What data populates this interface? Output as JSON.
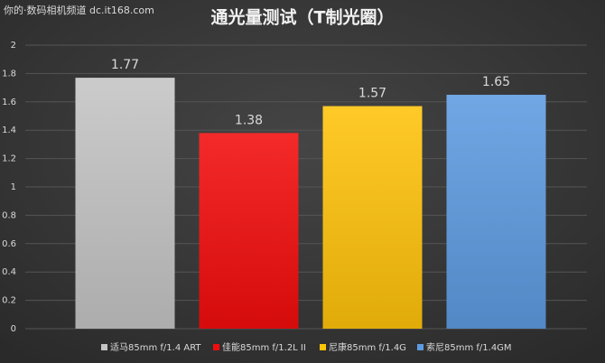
{
  "watermark": "你的·数码相机频道 dc.it168.com",
  "chart_data": {
    "type": "bar",
    "title": "通光量测试（T制光圈）",
    "categories": [
      "适马85mm f/1.4 ART",
      "佳能85mm f/1.2L II",
      "尼康85mm f/1.4G",
      "索尼85mm f/1.4GM"
    ],
    "values": [
      1.77,
      1.38,
      1.57,
      1.65
    ],
    "colors": [
      "#c4c4c4",
      "#f20d0d",
      "#ffc30a",
      "#5d9be0"
    ],
    "ylim": [
      0,
      2
    ],
    "yticks": [
      0,
      0.2,
      0.4,
      0.6,
      0.8,
      1,
      1.2,
      1.4,
      1.6,
      1.8,
      2
    ],
    "grid": true,
    "legend": "bottom"
  }
}
